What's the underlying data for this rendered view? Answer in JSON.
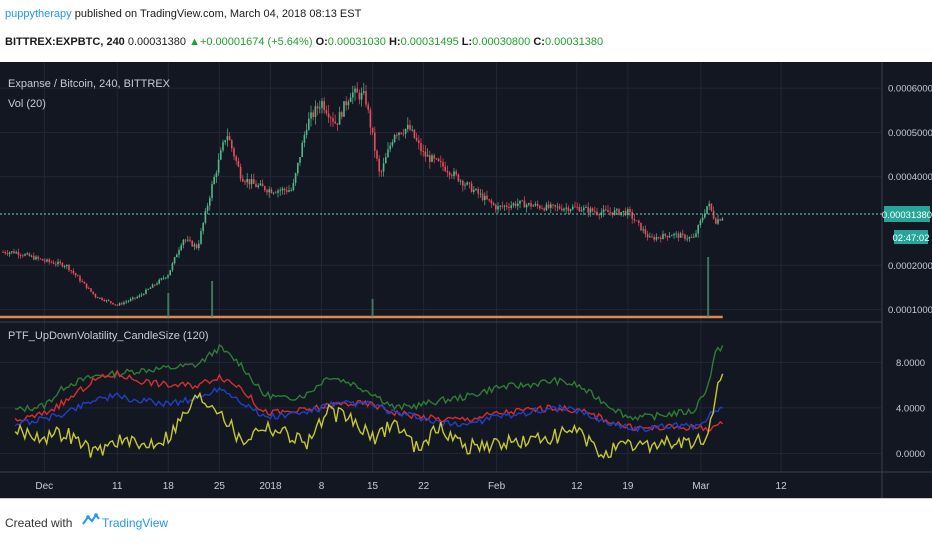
{
  "header": {
    "user": "puppytherapy",
    "published": "published on TradingView.com, March 04, 2018 08:13 EST",
    "symbol": "BITTREX:EXPBTC, 240",
    "last": "0.00031380",
    "change": "+0.00001674 (+5.64%)",
    "o_label": "O:",
    "o": "0.00031030",
    "h_label": "H:",
    "h": "0.00031495",
    "l_label": "L:",
    "l": "0.00030800",
    "c_label": "C:",
    "c": "0.00031380"
  },
  "chart": {
    "title": "Expanse / Bitcoin, 240, BITTREX",
    "vol_label": "Vol (20)",
    "indicator_label": "PTF_UpDownVolatility_CandleSize (120)",
    "price_badge": "0.00031380",
    "timer_badge": "02:47:02"
  },
  "chart_data": [
    {
      "type": "candlestick",
      "title": "Expanse / Bitcoin, 240, BITTREX",
      "x_tick_labels": [
        "Dec",
        "11",
        "18",
        "25",
        "2018",
        "8",
        "15",
        "22",
        "Feb",
        "12",
        "19",
        "Mar",
        "12"
      ],
      "y_tick_labels": [
        "0.00060000",
        "0.00050000",
        "0.00040000",
        "0.00031380",
        "0.00020000",
        "0.00010000"
      ],
      "ylim": [
        9e-05,
        0.00065
      ],
      "series": [
        {
          "name": "EXPBTC",
          "x": [
            "Nov 27",
            "Dec 1",
            "Dec 4",
            "Dec 8",
            "Dec 11",
            "Dec 14",
            "Dec 18",
            "Dec 20",
            "Dec 22",
            "Dec 24",
            "Dec 26",
            "Dec 28",
            "Dec 30",
            "Jan 1",
            "Jan 4",
            "Jan 6",
            "Jan 8",
            "Jan 10",
            "Jan 12",
            "Jan 14",
            "Jan 16",
            "Jan 18",
            "Jan 20",
            "Jan 22",
            "Jan 25",
            "Jan 28",
            "Feb 1",
            "Feb 4",
            "Feb 8",
            "Feb 12",
            "Feb 15",
            "Feb 19",
            "Feb 22",
            "Feb 25",
            "Feb 28",
            "Mar 2",
            "Mar 3",
            "Mar 4"
          ],
          "values": [
            0.00023,
            0.00021,
            0.0002,
            0.00013,
            0.00011,
            0.00013,
            0.00018,
            0.00026,
            0.00024,
            0.00038,
            0.0005,
            0.0004,
            0.00038,
            0.00037,
            0.00037,
            0.00052,
            0.00057,
            0.00052,
            0.00059,
            0.00058,
            0.0004,
            0.0005,
            0.00051,
            0.00045,
            0.00042,
            0.00038,
            0.00033,
            0.00034,
            0.00033,
            0.00033,
            0.00032,
            0.00032,
            0.00026,
            0.00027,
            0.00026,
            0.00034,
            0.0003,
            0.00031
          ]
        }
      ]
    },
    {
      "type": "bar",
      "title": "Vol (20)",
      "x": [
        "Dec 18",
        "Dec 24",
        "Jan 15",
        "Mar 2"
      ],
      "values": [
        0.4,
        0.6,
        0.3,
        1.0
      ]
    },
    {
      "type": "line",
      "title": "PTF_UpDownVolatility_CandleSize (120)",
      "y_tick_labels": [
        "8.0000",
        "4.0000",
        "0.0000"
      ],
      "ylim": [
        -1.2,
        10.5
      ],
      "x": [
        "Nov 27",
        "Dec 1",
        "Dec 4",
        "Dec 8",
        "Dec 11",
        "Dec 14",
        "Dec 18",
        "Dec 22",
        "Dec 25",
        "Dec 28",
        "Dec 31",
        "Jan 3",
        "Jan 6",
        "Jan 9",
        "Jan 12",
        "Jan 15",
        "Jan 18",
        "Jan 21",
        "Jan 24",
        "Jan 28",
        "Feb 1",
        "Feb 5",
        "Feb 9",
        "Feb 12",
        "Feb 15",
        "Feb 19",
        "Feb 22",
        "Feb 25",
        "Feb 28",
        "Mar 2",
        "Mar 3",
        "Mar 4"
      ],
      "series": [
        {
          "color": "#2e7d32",
          "values": [
            3.8,
            4.2,
            6.0,
            6.8,
            7.0,
            7.3,
            7.5,
            7.8,
            9.3,
            7.8,
            5.2,
            4.8,
            5.2,
            6.8,
            6.2,
            5.3,
            4.0,
            4.2,
            4.6,
            5.0,
            5.8,
            6.0,
            6.4,
            6.0,
            4.8,
            3.2,
            3.2,
            3.5,
            3.7,
            6.0,
            8.8,
            9.5
          ]
        },
        {
          "color": "#d32f2f",
          "values": [
            2.8,
            3.5,
            4.6,
            6.5,
            7.0,
            6.4,
            6.0,
            6.0,
            6.8,
            5.8,
            3.6,
            3.6,
            3.8,
            4.2,
            4.4,
            4.3,
            3.6,
            3.3,
            3.0,
            3.0,
            3.5,
            3.8,
            4.0,
            3.8,
            3.2,
            2.3,
            2.2,
            2.3,
            2.3,
            2.2,
            2.4,
            2.6
          ]
        },
        {
          "color": "#1e40c8",
          "values": [
            2.6,
            3.0,
            3.6,
            4.8,
            5.0,
            4.6,
            4.4,
            4.8,
            5.8,
            4.6,
            3.2,
            3.3,
            3.6,
            4.2,
            4.4,
            4.3,
            3.5,
            3.2,
            2.6,
            2.6,
            3.2,
            3.6,
            4.0,
            3.8,
            3.0,
            2.2,
            2.2,
            2.4,
            2.4,
            3.2,
            3.8,
            4.0
          ]
        },
        {
          "color": "#c8c832",
          "values": [
            2.0,
            1.5,
            1.8,
            0.0,
            1.2,
            0.6,
            1.5,
            5.0,
            4.0,
            1.0,
            2.5,
            1.8,
            1.0,
            3.6,
            3.0,
            1.2,
            2.8,
            0.5,
            2.2,
            0.6,
            0.8,
            1.0,
            1.5,
            2.0,
            0.0,
            0.6,
            0.8,
            1.0,
            0.8,
            1.4,
            5.2,
            7.0
          ]
        }
      ]
    }
  ],
  "footer": {
    "created": "Created with",
    "brand": "TradingView"
  }
}
